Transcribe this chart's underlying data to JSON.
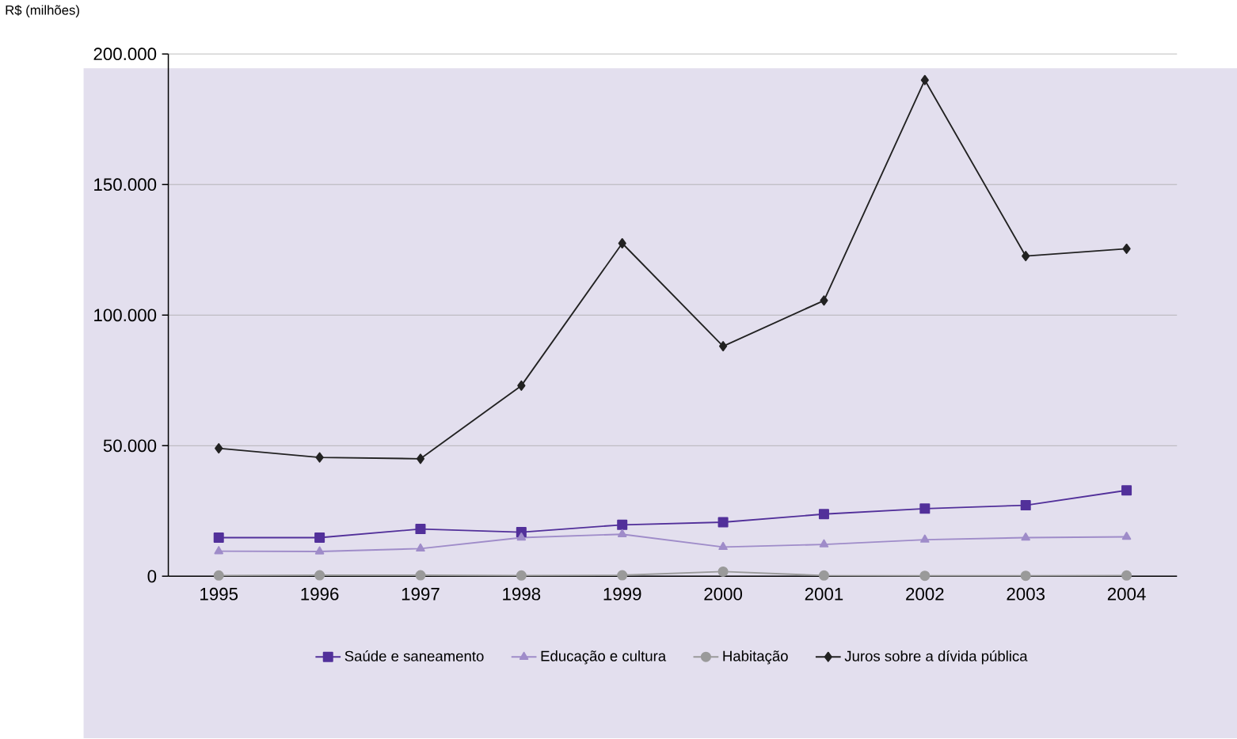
{
  "chart_data": {
    "type": "line",
    "ylabel": "R$ (milhões)",
    "categories": [
      "1995",
      "1996",
      "1997",
      "1998",
      "1999",
      "2000",
      "2001",
      "2002",
      "2003",
      "2004"
    ],
    "series": [
      {
        "name": "Saúde e saneamento",
        "color": "#52309a",
        "marker": "square",
        "values": [
          14800,
          14800,
          18100,
          16900,
          19700,
          20700,
          23800,
          25900,
          27200,
          32900
        ]
      },
      {
        "name": "Educação e cultura",
        "color": "#9f8cc9",
        "marker": "triangle",
        "values": [
          9600,
          9500,
          10600,
          14800,
          16100,
          11200,
          12200,
          14000,
          14800,
          15100
        ]
      },
      {
        "name": "Habitação",
        "color": "#9a9a9a",
        "marker": "circle",
        "values": [
          300,
          400,
          400,
          300,
          400,
          1800,
          300,
          200,
          200,
          300
        ]
      },
      {
        "name": "Juros sobre a dívida pública",
        "color": "#222222",
        "marker": "diamond",
        "values": [
          49000,
          45500,
          45000,
          73000,
          127500,
          88100,
          105600,
          190000,
          122600,
          125400
        ]
      }
    ],
    "ylim": [
      0,
      200000
    ],
    "yticks": [
      0,
      {
        "value": 50000,
        "label": "50.000"
      },
      {
        "value": 100000,
        "label": "100.000"
      },
      {
        "value": 150000,
        "label": "150.000"
      },
      {
        "value": 200000,
        "label": "200.000"
      }
    ],
    "grid": "y",
    "legend": "bottom",
    "line_style": "solid"
  }
}
